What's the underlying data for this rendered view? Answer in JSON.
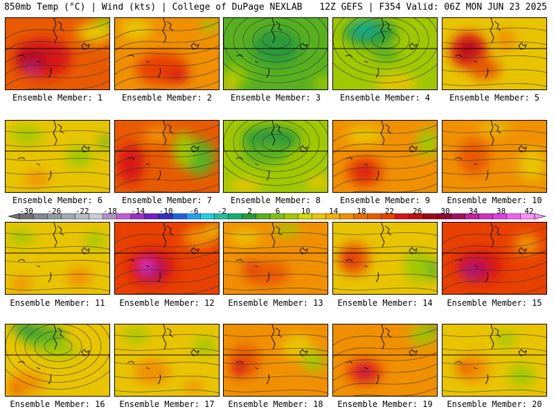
{
  "header": {
    "left": "850mb Temp (°C) | Wind (kts) | College of DuPage NEXLAB",
    "right": "12Z GEFS | F354 Valid: 06Z MON JUN 23 2025"
  },
  "member_label_prefix": "Ensemble Member: ",
  "members": [
    {
      "id": "1",
      "label": "Ensemble Member: 1",
      "bg": "#e85a00",
      "blobs": [
        [
          "#d81414",
          0.35,
          0.55,
          0.55,
          0.55
        ],
        [
          "#b01020",
          0.25,
          0.6,
          0.3,
          0.3
        ],
        [
          "#c030a0",
          0.25,
          0.7,
          0.1,
          0.12
        ],
        [
          "#e8c400",
          0.85,
          0.2,
          0.35,
          0.3
        ],
        [
          "#a0c800",
          0.95,
          0.05,
          0.2,
          0.2
        ]
      ],
      "isobars": "sw"
    },
    {
      "id": "2",
      "label": "Ensemble Member: 2",
      "bg": "#f09000",
      "blobs": [
        [
          "#e84000",
          0.45,
          0.7,
          0.5,
          0.45
        ],
        [
          "#d81414",
          0.6,
          0.8,
          0.2,
          0.2
        ],
        [
          "#e8c400",
          0.2,
          0.15,
          0.3,
          0.3
        ],
        [
          "#a0c800",
          0.9,
          0.1,
          0.15,
          0.2
        ]
      ],
      "isobars": "sw"
    },
    {
      "id": "3",
      "label": "Ensemble Member: 3",
      "bg": "#58b020",
      "blobs": [
        [
          "#2a9a3a",
          0.5,
          0.4,
          0.45,
          0.5
        ],
        [
          "#a0c800",
          0.1,
          0.8,
          0.25,
          0.3
        ],
        [
          "#e8c400",
          0.05,
          0.95,
          0.15,
          0.15
        ],
        [
          "#a0c800",
          0.95,
          0.9,
          0.2,
          0.2
        ]
      ],
      "isobars": "low"
    },
    {
      "id": "4",
      "label": "Ensemble Member: 4",
      "bg": "#a0c800",
      "blobs": [
        [
          "#2a9a3a",
          0.35,
          0.2,
          0.5,
          0.4
        ],
        [
          "#10b090",
          0.3,
          0.15,
          0.25,
          0.2
        ],
        [
          "#e8c400",
          0.6,
          0.9,
          0.4,
          0.25
        ],
        [
          "#58b020",
          0.5,
          0.5,
          0.25,
          0.2
        ]
      ],
      "isobars": "low"
    },
    {
      "id": "5",
      "label": "Ensemble Member: 5",
      "bg": "#e8c400",
      "blobs": [
        [
          "#d81414",
          0.25,
          0.45,
          0.35,
          0.5
        ],
        [
          "#b01020",
          0.25,
          0.45,
          0.15,
          0.2
        ],
        [
          "#e85a00",
          0.4,
          0.7,
          0.3,
          0.3
        ],
        [
          "#f09000",
          0.6,
          0.3,
          0.2,
          0.3
        ]
      ],
      "isobars": "flat"
    },
    {
      "id": "6",
      "label": "Ensemble Member: 6",
      "bg": "#e8c400",
      "blobs": [
        [
          "#a0c800",
          0.2,
          0.2,
          0.3,
          0.25
        ],
        [
          "#a0c800",
          0.7,
          0.5,
          0.25,
          0.3
        ],
        [
          "#f09000",
          0.3,
          0.8,
          0.25,
          0.2
        ],
        [
          "#58b020",
          0.95,
          0.3,
          0.1,
          0.2
        ]
      ],
      "isobars": "flat"
    },
    {
      "id": "7",
      "label": "Ensemble Member: 7",
      "bg": "#e85a00",
      "blobs": [
        [
          "#d81414",
          0.15,
          0.6,
          0.25,
          0.55
        ],
        [
          "#58b020",
          0.8,
          0.5,
          0.3,
          0.5
        ],
        [
          "#a0c800",
          0.65,
          0.4,
          0.2,
          0.5
        ],
        [
          "#f09000",
          0.4,
          0.2,
          0.25,
          0.25
        ]
      ],
      "isobars": "sw"
    },
    {
      "id": "8",
      "label": "Ensemble Member: 8",
      "bg": "#a0c800",
      "blobs": [
        [
          "#2a9a3a",
          0.45,
          0.25,
          0.55,
          0.35
        ],
        [
          "#58b020",
          0.4,
          0.45,
          0.45,
          0.3
        ],
        [
          "#e8c400",
          0.2,
          0.9,
          0.3,
          0.2
        ],
        [
          "#e8c400",
          0.9,
          0.85,
          0.2,
          0.2
        ]
      ],
      "isobars": "low"
    },
    {
      "id": "9",
      "label": "Ensemble Member: 9",
      "bg": "#f09000",
      "blobs": [
        [
          "#e84000",
          0.3,
          0.7,
          0.35,
          0.4
        ],
        [
          "#d81414",
          0.3,
          0.7,
          0.15,
          0.25
        ],
        [
          "#e8c400",
          0.3,
          0.2,
          0.35,
          0.25
        ],
        [
          "#a0c800",
          0.9,
          0.3,
          0.2,
          0.4
        ]
      ],
      "isobars": "sw"
    },
    {
      "id": "10",
      "label": "Ensemble Member: 10",
      "bg": "#f09000",
      "blobs": [
        [
          "#e85a00",
          0.3,
          0.5,
          0.3,
          0.5
        ],
        [
          "#e8c400",
          0.85,
          0.6,
          0.25,
          0.45
        ],
        [
          "#e8c400",
          0.5,
          0.1,
          0.3,
          0.15
        ]
      ],
      "isobars": "flat"
    },
    {
      "id": "11",
      "label": "Ensemble Member: 11",
      "bg": "#e8c400",
      "blobs": [
        [
          "#a0c800",
          0.15,
          0.2,
          0.25,
          0.2
        ],
        [
          "#a0c800",
          0.85,
          0.25,
          0.2,
          0.2
        ],
        [
          "#f09000",
          0.15,
          0.85,
          0.2,
          0.2
        ],
        [
          "#f09000",
          0.7,
          0.75,
          0.25,
          0.25
        ]
      ],
      "isobars": "flat"
    },
    {
      "id": "12",
      "label": "Ensemble Member: 12",
      "bg": "#e84000",
      "blobs": [
        [
          "#d81414",
          0.35,
          0.6,
          0.45,
          0.5
        ],
        [
          "#b01060",
          0.35,
          0.65,
          0.25,
          0.3
        ],
        [
          "#e040e0",
          0.3,
          0.6,
          0.12,
          0.15
        ],
        [
          "#f09000",
          0.8,
          0.2,
          0.3,
          0.3
        ],
        [
          "#e8c400",
          0.95,
          0.1,
          0.15,
          0.2
        ]
      ],
      "isobars": "sw"
    },
    {
      "id": "13",
      "label": "Ensemble Member: 13",
      "bg": "#f09000",
      "blobs": [
        [
          "#e85a00",
          0.4,
          0.7,
          0.45,
          0.35
        ],
        [
          "#e8c400",
          0.2,
          0.2,
          0.3,
          0.2
        ],
        [
          "#a0c800",
          0.6,
          0.1,
          0.25,
          0.15
        ],
        [
          "#d81414",
          0.25,
          0.6,
          0.1,
          0.15
        ]
      ],
      "isobars": "flat"
    },
    {
      "id": "14",
      "label": "Ensemble Member: 14",
      "bg": "#e8c400",
      "blobs": [
        [
          "#e85a00",
          0.2,
          0.5,
          0.3,
          0.45
        ],
        [
          "#d81414",
          0.15,
          0.5,
          0.12,
          0.2
        ],
        [
          "#a0c800",
          0.8,
          0.6,
          0.25,
          0.45
        ],
        [
          "#58b020",
          0.95,
          0.65,
          0.12,
          0.3
        ]
      ],
      "isobars": "flat"
    },
    {
      "id": "15",
      "label": "Ensemble Member: 15",
      "bg": "#e84000",
      "blobs": [
        [
          "#d81414",
          0.35,
          0.6,
          0.45,
          0.45
        ],
        [
          "#b01060",
          0.3,
          0.65,
          0.25,
          0.25
        ],
        [
          "#a0208a",
          0.25,
          0.7,
          0.12,
          0.12
        ],
        [
          "#f09000",
          0.8,
          0.3,
          0.25,
          0.3
        ]
      ],
      "isobars": "sw"
    },
    {
      "id": "16",
      "label": "Ensemble Member: 16",
      "bg": "#e8c400",
      "blobs": [
        [
          "#58b020",
          0.35,
          0.15,
          0.45,
          0.3
        ],
        [
          "#2a9a3a",
          0.2,
          0.05,
          0.3,
          0.15
        ],
        [
          "#a0c800",
          0.5,
          0.35,
          0.4,
          0.2
        ],
        [
          "#f09000",
          0.2,
          0.8,
          0.35,
          0.3
        ],
        [
          "#e85a00",
          0.1,
          0.9,
          0.15,
          0.15
        ]
      ],
      "isobars": "low"
    },
    {
      "id": "17",
      "label": "Ensemble Member: 17",
      "bg": "#e8c400",
      "blobs": [
        [
          "#f09000",
          0.35,
          0.65,
          0.35,
          0.35
        ],
        [
          "#a0c800",
          0.2,
          0.15,
          0.25,
          0.2
        ],
        [
          "#a0c800",
          0.85,
          0.3,
          0.2,
          0.25
        ],
        [
          "#f09000",
          0.75,
          0.85,
          0.2,
          0.15
        ]
      ],
      "isobars": "flat"
    },
    {
      "id": "18",
      "label": "Ensemble Member: 18",
      "bg": "#f09000",
      "blobs": [
        [
          "#e85a00",
          0.2,
          0.5,
          0.3,
          0.45
        ],
        [
          "#d81414",
          0.15,
          0.6,
          0.15,
          0.25
        ],
        [
          "#e8c400",
          0.7,
          0.3,
          0.3,
          0.35
        ],
        [
          "#a0c800",
          0.85,
          0.5,
          0.2,
          0.3
        ]
      ],
      "isobars": "flat"
    },
    {
      "id": "19",
      "label": "Ensemble Member: 19",
      "bg": "#f09000",
      "blobs": [
        [
          "#e84000",
          0.3,
          0.65,
          0.35,
          0.35
        ],
        [
          "#d81414",
          0.3,
          0.65,
          0.22,
          0.25
        ],
        [
          "#b01060",
          0.3,
          0.65,
          0.1,
          0.1
        ],
        [
          "#a0c800",
          0.85,
          0.15,
          0.25,
          0.25
        ],
        [
          "#58b020",
          0.95,
          0.05,
          0.12,
          0.15
        ]
      ],
      "isobars": "sw"
    },
    {
      "id": "20",
      "label": "Ensemble Member: 20",
      "bg": "#e8c400",
      "blobs": [
        [
          "#f09000",
          0.3,
          0.6,
          0.3,
          0.4
        ],
        [
          "#e85a00",
          0.2,
          0.6,
          0.15,
          0.2
        ],
        [
          "#a0c800",
          0.75,
          0.7,
          0.25,
          0.3
        ],
        [
          "#a0c800",
          0.6,
          0.2,
          0.2,
          0.2
        ]
      ],
      "isobars": "flat"
    }
  ],
  "colorbar": {
    "ticks": [
      "-30",
      "-26",
      "-22",
      "-18",
      "-14",
      "-10",
      "-6",
      "-2",
      "2",
      "6",
      "10",
      "14",
      "18",
      "22",
      "26",
      "30",
      "34",
      "38",
      "42"
    ],
    "colors": [
      "#707070",
      "#808890",
      "#909aa0",
      "#a0a8b0",
      "#b4bcc4",
      "#c8cdd4",
      "#b090c8",
      "#c060d8",
      "#a030c0",
      "#7020c0",
      "#3030c0",
      "#2060e0",
      "#20a0f0",
      "#20d0e0",
      "#20c0a0",
      "#10b070",
      "#2a9a3a",
      "#58b020",
      "#80c010",
      "#a0c800",
      "#d0d800",
      "#e8c400",
      "#f0b000",
      "#f09000",
      "#e87000",
      "#e85a00",
      "#e84000",
      "#d81414",
      "#c01010",
      "#a00818",
      "#900830",
      "#a01060",
      "#c020a0",
      "#d030c0",
      "#e040e0",
      "#f060f0",
      "#f890f8"
    ]
  }
}
